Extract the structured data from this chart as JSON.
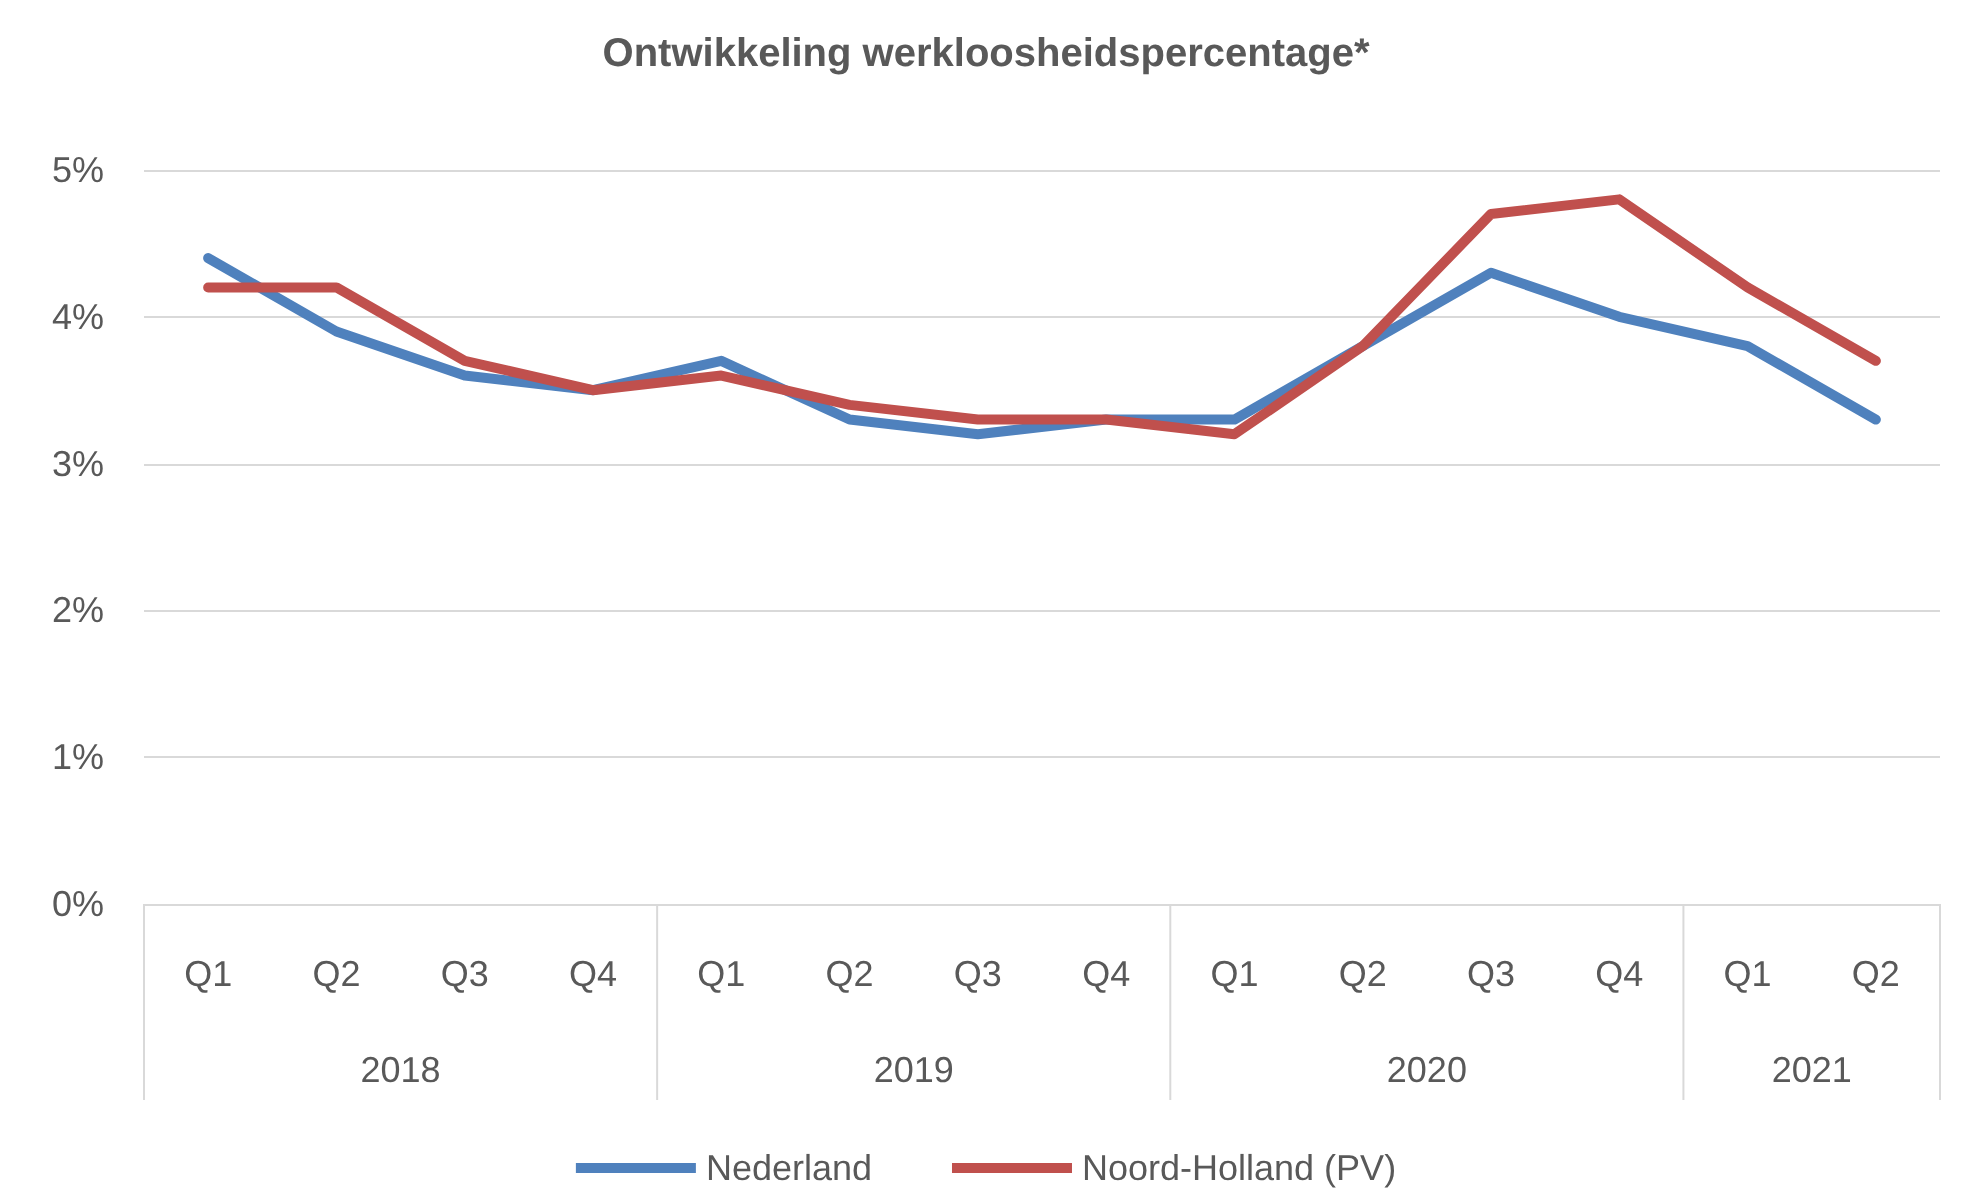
{
  "chart_data": {
    "type": "line",
    "title": "Ontwikkeling werkloosheidspercentage*",
    "categories": [
      "Q1",
      "Q2",
      "Q3",
      "Q4",
      "Q1",
      "Q2",
      "Q3",
      "Q4",
      "Q1",
      "Q2",
      "Q3",
      "Q4",
      "Q1",
      "Q2"
    ],
    "series": [
      {
        "name": "Nederland",
        "color": "#4f81bd",
        "values": [
          4.4,
          3.9,
          3.6,
          3.5,
          3.7,
          3.3,
          3.2,
          3.3,
          3.3,
          3.8,
          4.3,
          4.0,
          3.8,
          3.3
        ]
      },
      {
        "name": "Noord-Holland (PV)",
        "color": "#c0504d",
        "values": [
          4.2,
          4.2,
          3.7,
          3.5,
          3.6,
          3.4,
          3.3,
          3.3,
          3.2,
          3.8,
          4.7,
          4.8,
          4.2,
          3.7
        ]
      }
    ],
    "annotations": [
      "2018",
      "2019",
      "2020",
      "2021"
    ],
    "ylim": [
      0,
      5
    ],
    "yticks": [
      {
        "value": 0,
        "label": "0%"
      },
      {
        "value": 1,
        "label": "1%"
      },
      {
        "value": 2,
        "label": "2%"
      },
      {
        "value": 3,
        "label": "3%"
      },
      {
        "value": 4,
        "label": "4%"
      },
      {
        "value": 5,
        "label": "5%"
      }
    ],
    "grid": "y",
    "legend": "bottom",
    "marker": "none",
    "line_style": "solid"
  }
}
